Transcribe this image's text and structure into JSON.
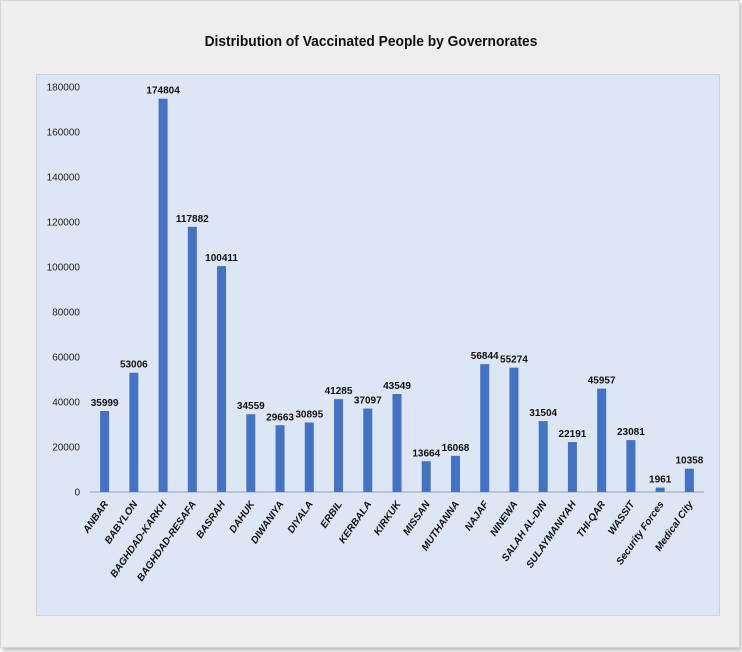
{
  "chart_data": {
    "type": "bar",
    "title": "Distribution of Vaccinated People by Governorates",
    "categories": [
      "ANBAR",
      "BABYLON",
      "BAGHDAD-KARKH",
      "BAGHDAD-RESAFA",
      "BASRAH",
      "DAHUK",
      "DIWANIYA",
      "DIYALA",
      "ERBIL",
      "KERBALA",
      "KIRKUK",
      "MISSAN",
      "MUTHANNA",
      "NAJAF",
      "NINEWA",
      "SALAH AL-DIN",
      "SULAYMANIYAH",
      "THI-QAR",
      "WASSIT",
      "Security Forces",
      "Medical City"
    ],
    "values": [
      35999,
      53006,
      174804,
      117882,
      100411,
      34559,
      29663,
      30895,
      41285,
      37097,
      43549,
      13664,
      16068,
      56844,
      55274,
      31504,
      22191,
      45957,
      23081,
      1961,
      10358
    ],
    "ylim": [
      0,
      180000
    ],
    "yticks": [
      0,
      20000,
      40000,
      60000,
      80000,
      100000,
      120000,
      140000,
      160000,
      180000
    ],
    "grid": false,
    "legend": "none",
    "bar_color": "#4472c4",
    "plot_bg": "#dde6f4"
  }
}
